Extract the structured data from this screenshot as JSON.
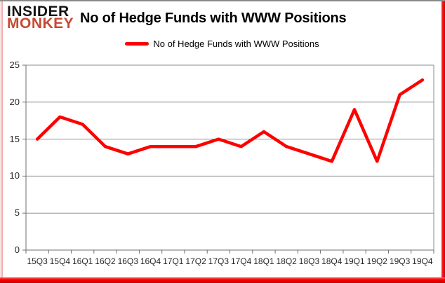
{
  "branding": {
    "logo_line1": "INSIDER",
    "logo_line2": "MONKEY"
  },
  "header": {
    "title": "No of Hedge Funds with WWW Positions"
  },
  "legend": {
    "label": "No of Hedge Funds with WWW Positions"
  },
  "colors": {
    "line": "#ff0000",
    "gridline": "#8e8e8e",
    "axis": "#6f6f6f",
    "tick_text": "#262626",
    "title_text": "#000000",
    "logo_black": "#141414",
    "logo_red": "#c64a33"
  },
  "chart_data": {
    "type": "line",
    "title": "No of Hedge Funds with WWW Positions",
    "categories": [
      "15Q3",
      "15Q4",
      "16Q1",
      "16Q2",
      "16Q3",
      "16Q4",
      "17Q1",
      "17Q2",
      "17Q3",
      "17Q4",
      "18Q1",
      "18Q2",
      "18Q3",
      "18Q4",
      "19Q1",
      "19Q2",
      "19Q3",
      "19Q4"
    ],
    "series": [
      {
        "name": "No of Hedge Funds with WWW Positions",
        "values": [
          15,
          18,
          17,
          14,
          13,
          14,
          14,
          14,
          15,
          14,
          16,
          14,
          13,
          12,
          19,
          12,
          21,
          23
        ]
      }
    ],
    "xlabel": "",
    "ylabel": "",
    "ylim": [
      0,
      25
    ],
    "yticks": [
      0,
      5,
      10,
      15,
      20,
      25
    ],
    "grid": true,
    "legend_position": "top-center"
  }
}
